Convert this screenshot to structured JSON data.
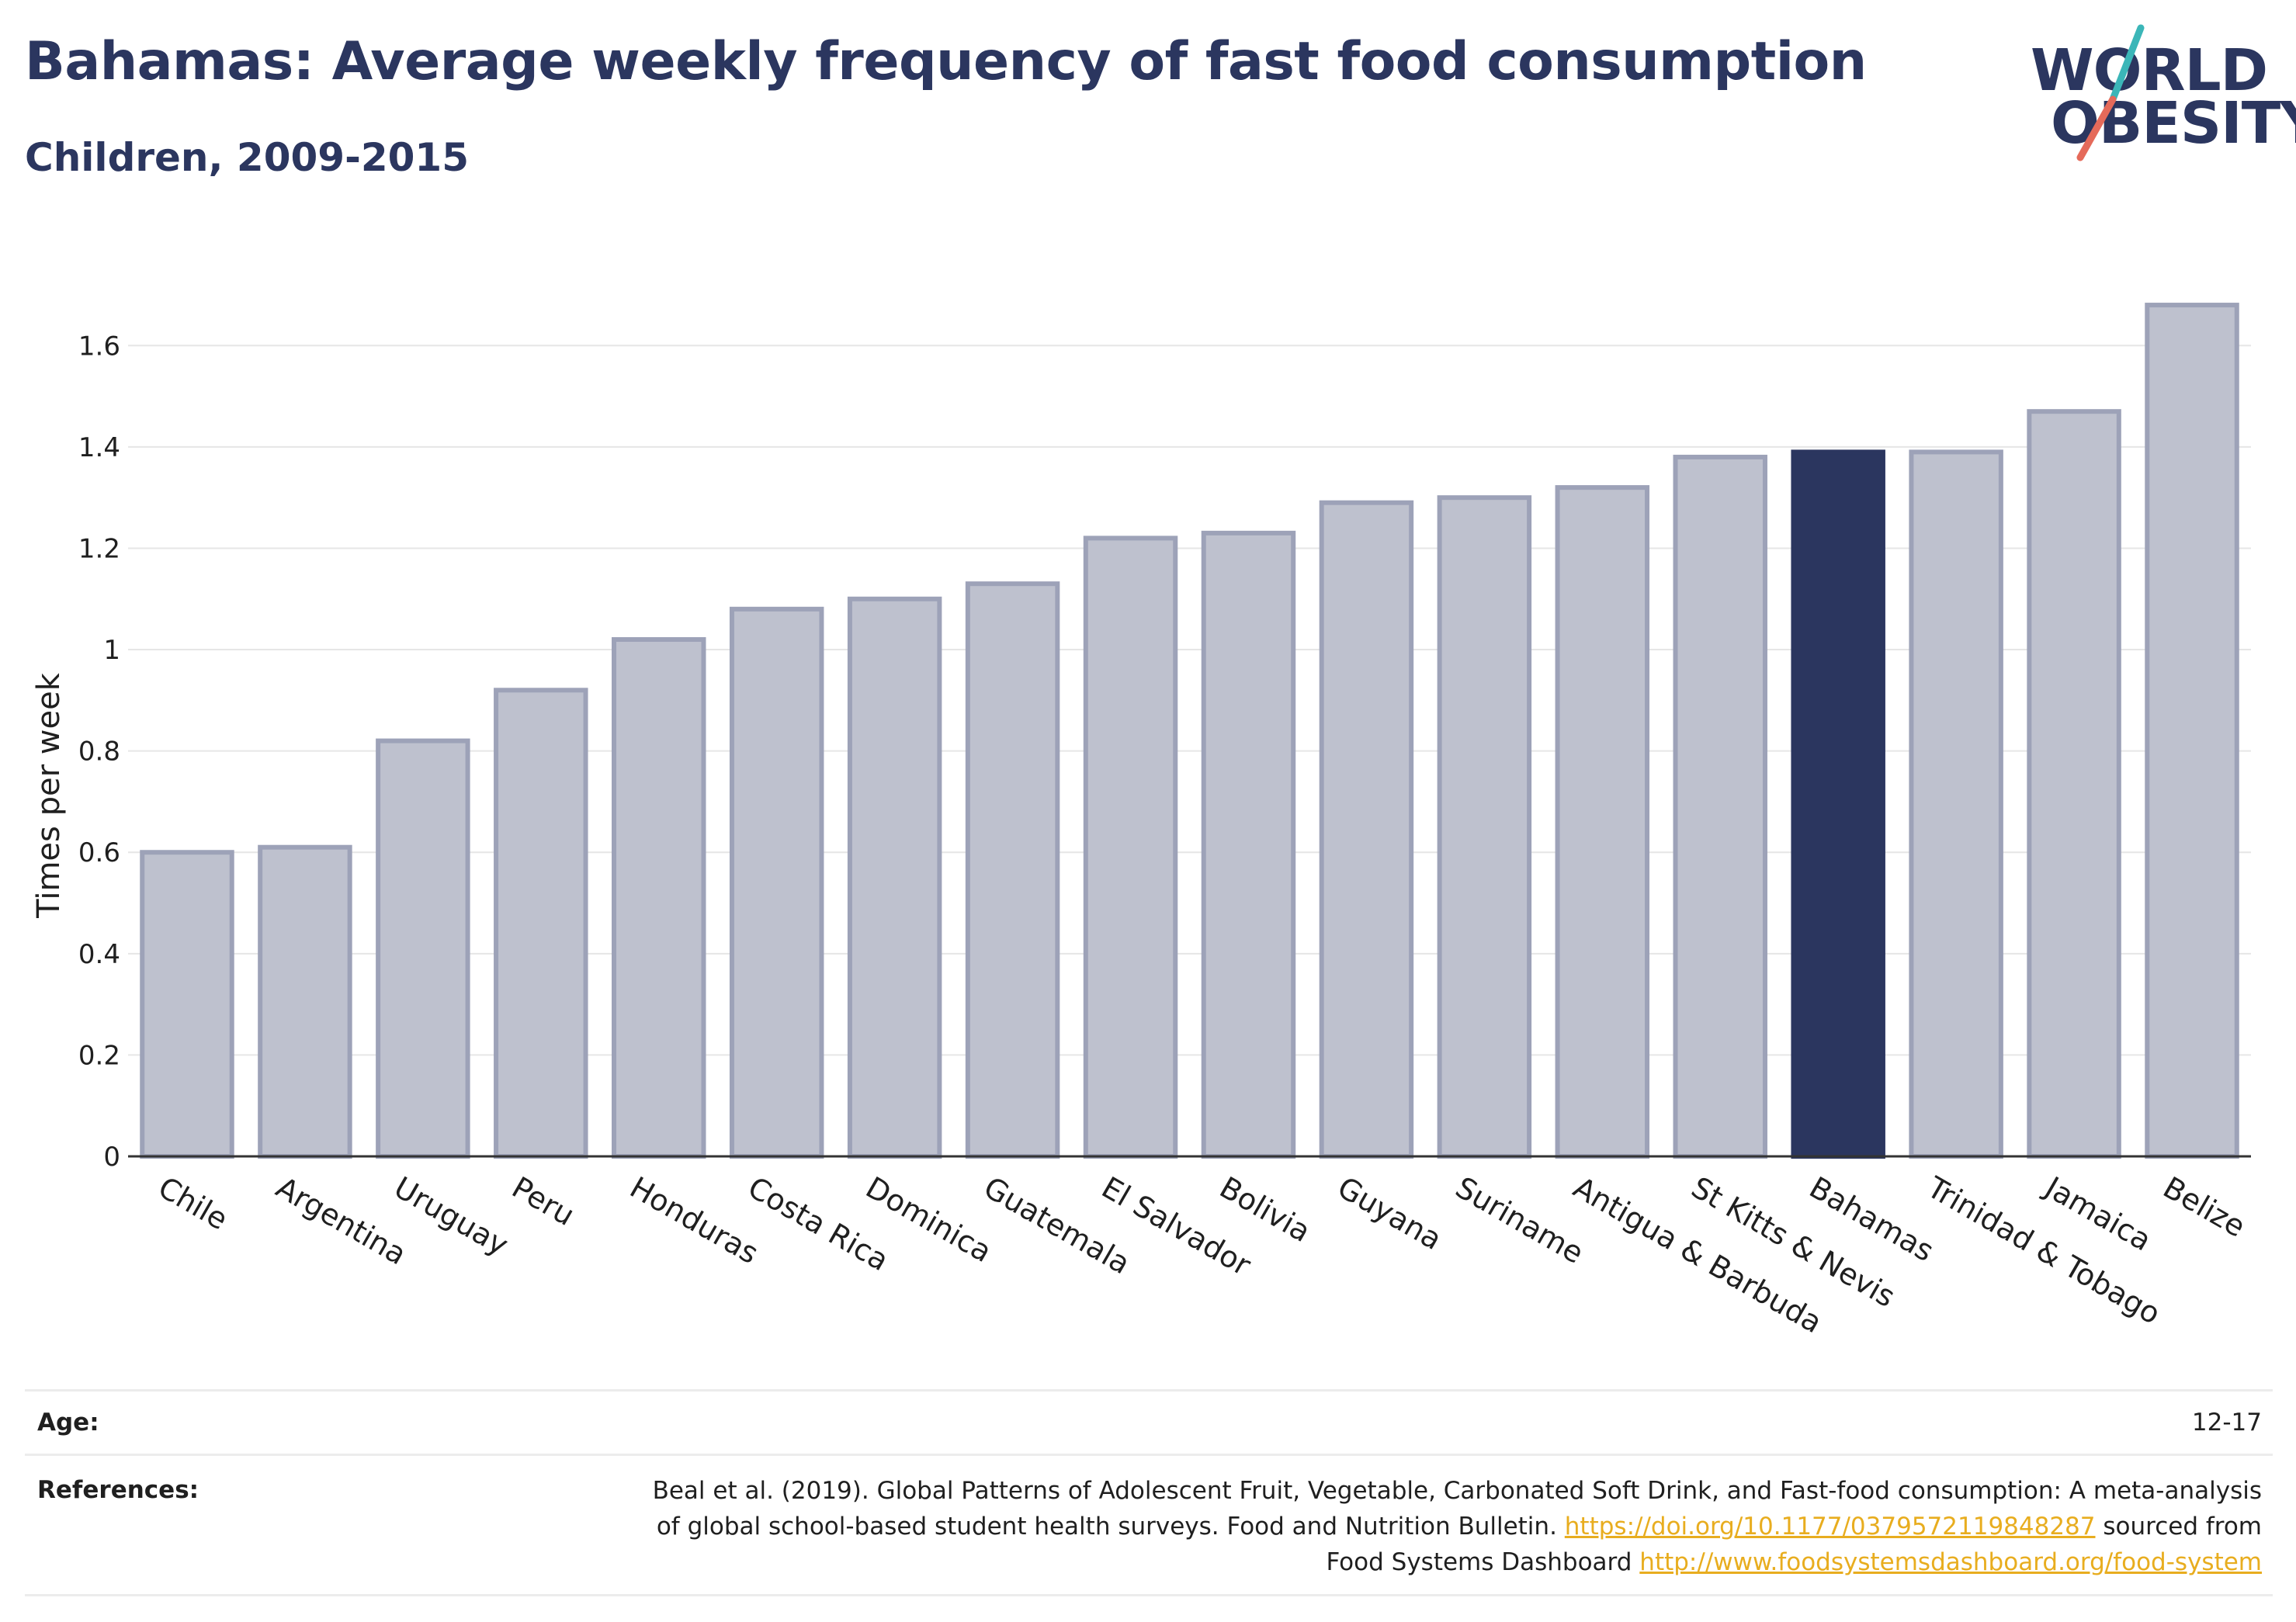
{
  "header": {
    "title": "Bahamas: Average weekly frequency of fast food consumption",
    "subtitle": "Children, 2009-2015"
  },
  "logo": {
    "line1": "WORLD",
    "line2": "OBESITY",
    "accent_teal": "#3bb6b8",
    "accent_coral": "#e56a5a"
  },
  "colors": {
    "primary": "#2b365f",
    "bar_default": "#bec1ce",
    "bar_border": "#9da2b8",
    "bar_highlight": "#2b365f",
    "link": "#e8ad1f"
  },
  "chart_data": {
    "type": "bar",
    "ylabel": "Times per week",
    "xlabel": "",
    "ylim": [
      0,
      1.7
    ],
    "yticks": [
      "0",
      "0.2",
      "0.4",
      "0.6",
      "0.8",
      "1",
      "1.2",
      "1.4",
      "1.6"
    ],
    "ytick_values": [
      0,
      0.2,
      0.4,
      0.6,
      0.8,
      1.0,
      1.2,
      1.4,
      1.6
    ],
    "grid": true,
    "highlight": "Bahamas",
    "categories": [
      "Chile",
      "Argentina",
      "Uruguay",
      "Peru",
      "Honduras",
      "Costa Rica",
      "Dominica",
      "Guatemala",
      "El Salvador",
      "Bolivia",
      "Guyana",
      "Suriname",
      "Antigua & Barbuda",
      "St Kitts & Nevis",
      "Bahamas",
      "Trinidad & Tobago",
      "Jamaica",
      "Belize"
    ],
    "values": [
      0.6,
      0.61,
      0.82,
      0.92,
      1.02,
      1.08,
      1.1,
      1.13,
      1.22,
      1.23,
      1.29,
      1.3,
      1.32,
      1.38,
      1.39,
      1.39,
      1.47,
      1.68
    ]
  },
  "info": {
    "age_label": "Age:",
    "age_value": "12-17",
    "references_label": "References:",
    "references_text1": "Beal et al. (2019). Global Patterns of Adolescent Fruit, Vegetable, Carbonated Soft Drink, and Fast-food consumption: A meta-analysis of global school-based student health surveys. Food and Nutrition Bulletin.",
    "references_link1": "https://doi.org/10.1177/0379572119848287",
    "references_text2": "sourced from Food Systems Dashboard",
    "references_link2": "http://www.foodsystemsdashboard.org/food-system"
  }
}
